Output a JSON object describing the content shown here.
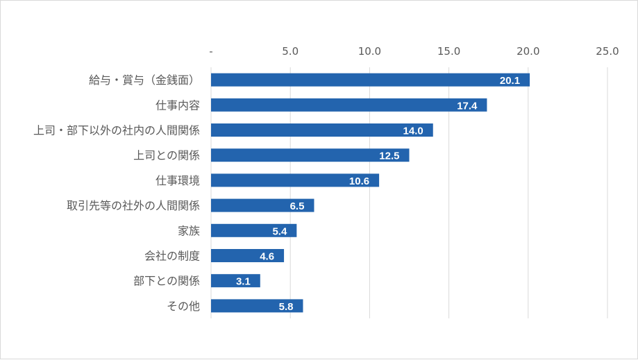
{
  "chart_data": {
    "type": "bar",
    "orientation": "horizontal",
    "title": "",
    "xlabel": "",
    "ylabel": "",
    "xlim": [
      0,
      25
    ],
    "ticks": [
      0,
      5,
      10,
      15,
      20,
      25
    ],
    "tick_labels": [
      "-",
      "5.0",
      "10.0",
      "15.0",
      "20.0",
      "25.0"
    ],
    "axis_position": "top",
    "grid": true,
    "legend": "none",
    "categories": [
      "給与・賞与（金銭面）",
      "仕事内容",
      "上司・部下以外の社内の人間関係",
      "上司との関係",
      "仕事環境",
      "取引先等の社外の人間関係",
      "家族",
      "会社の制度",
      "部下との関係",
      "その他"
    ],
    "values": [
      20.1,
      17.4,
      14.0,
      12.5,
      10.6,
      6.5,
      5.4,
      4.6,
      3.1,
      5.8
    ],
    "value_labels": [
      "20.1",
      "17.4",
      "14.0",
      "12.5",
      "10.6",
      "6.5",
      "5.4",
      "4.6",
      "3.1",
      "5.8"
    ]
  },
  "colors": {
    "bar": "#2364ae",
    "grid": "#d9d9d9",
    "text": "#595959",
    "label": "#ffffff"
  }
}
